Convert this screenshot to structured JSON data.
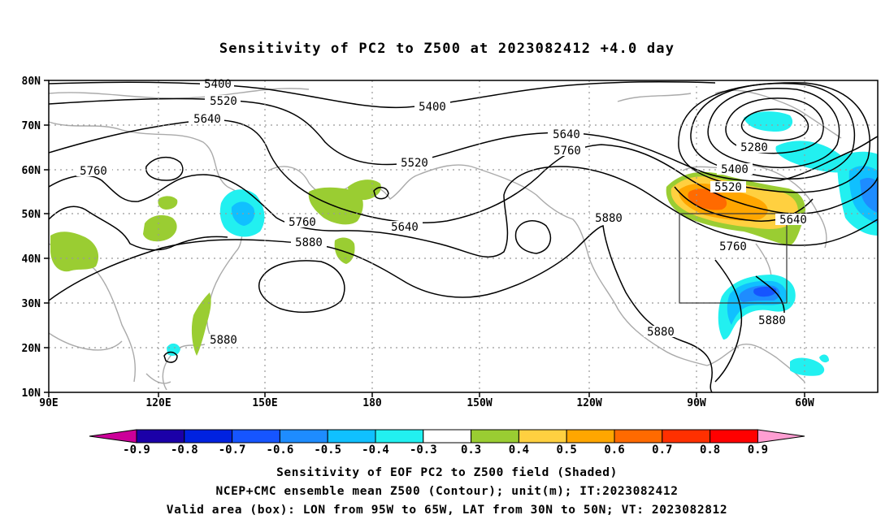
{
  "title": "Sensitivity of PC2 to Z500 at 2023082412 +4.0 day",
  "lat_labels": [
    "10N",
    "20N",
    "30N",
    "40N",
    "50N",
    "60N",
    "70N",
    "80N"
  ],
  "lon_labels": [
    "90E",
    "120E",
    "150E",
    "180",
    "150W",
    "120W",
    "90W",
    "60W"
  ],
  "contour_labels": [
    {
      "id": "c5400a",
      "text": "5400"
    },
    {
      "id": "c5520a",
      "text": "5520"
    },
    {
      "id": "c5640a",
      "text": "5640"
    },
    {
      "id": "c5760a",
      "text": "5760"
    },
    {
      "id": "c5400b",
      "text": "5400"
    },
    {
      "id": "c5520b",
      "text": "5520"
    },
    {
      "id": "c5640b",
      "text": "5640"
    },
    {
      "id": "c5760b",
      "text": "5760"
    },
    {
      "id": "c5640c",
      "text": "5640"
    },
    {
      "id": "c5880a",
      "text": "5880"
    },
    {
      "id": "c5760c",
      "text": "5760"
    },
    {
      "id": "c5880b",
      "text": "5880"
    },
    {
      "id": "c5880c",
      "text": "5880"
    },
    {
      "id": "c5280a",
      "text": "5280"
    },
    {
      "id": "c5400c",
      "text": "5400"
    },
    {
      "id": "c5520c",
      "text": "5520"
    },
    {
      "id": "c5640d",
      "text": "5640"
    },
    {
      "id": "c5760d",
      "text": "5760"
    },
    {
      "id": "c5880d",
      "text": "5880"
    },
    {
      "id": "c5880e",
      "text": "5880"
    }
  ],
  "colorbar": {
    "labels": [
      "-0.9",
      "-0.8",
      "-0.7",
      "-0.6",
      "-0.5",
      "-0.4",
      "-0.3",
      "0.3",
      "0.4",
      "0.5",
      "0.6",
      "0.7",
      "0.8",
      "0.9"
    ],
    "colors": [
      "#1b00a8",
      "#0022e0",
      "#1655ff",
      "#1e8cff",
      "#10c0ff",
      "#22f0f0",
      "#ffffff",
      "#9acd32",
      "#ffd040",
      "#ffa600",
      "#ff6a00",
      "#ff3000",
      "#ff0000"
    ],
    "low_arrow_color": "#cc0099",
    "high_arrow_color": "#ff9ed2"
  },
  "box": {
    "lon_west": "95W",
    "lon_east": "65W",
    "lat_south": "30N",
    "lat_north": "50N"
  },
  "captions": {
    "line1": "Sensitivity of EOF PC2 to Z500 field (Shaded)",
    "line2": "NCEP+CMC ensemble mean Z500 (Contour); unit(m); IT:2023082412",
    "line3": "Valid area (box): LON from 95W to 65W, LAT from 30N to 50N; VT: 2023082812"
  }
}
